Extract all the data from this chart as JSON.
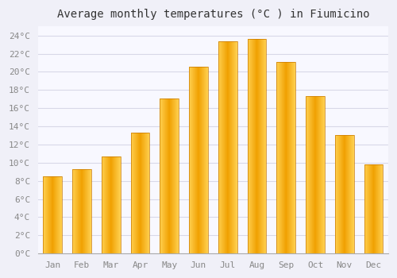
{
  "title": "Average monthly temperatures (°C ) in Fiumicino",
  "months": [
    "Jan",
    "Feb",
    "Mar",
    "Apr",
    "May",
    "Jun",
    "Jul",
    "Aug",
    "Sep",
    "Oct",
    "Nov",
    "Dec"
  ],
  "values": [
    8.5,
    9.3,
    10.7,
    13.3,
    17.1,
    20.6,
    23.4,
    23.6,
    21.1,
    17.3,
    13.0,
    9.8
  ],
  "bar_color_center": "#FFD050",
  "bar_color_edge": "#F0A000",
  "background_color": "#f0f0f8",
  "plot_bg_color": "#f8f8ff",
  "grid_color": "#d8d8e8",
  "ylim": [
    0,
    25
  ],
  "ytick_step": 2,
  "title_fontsize": 10,
  "tick_fontsize": 8,
  "label_color": "#888888"
}
